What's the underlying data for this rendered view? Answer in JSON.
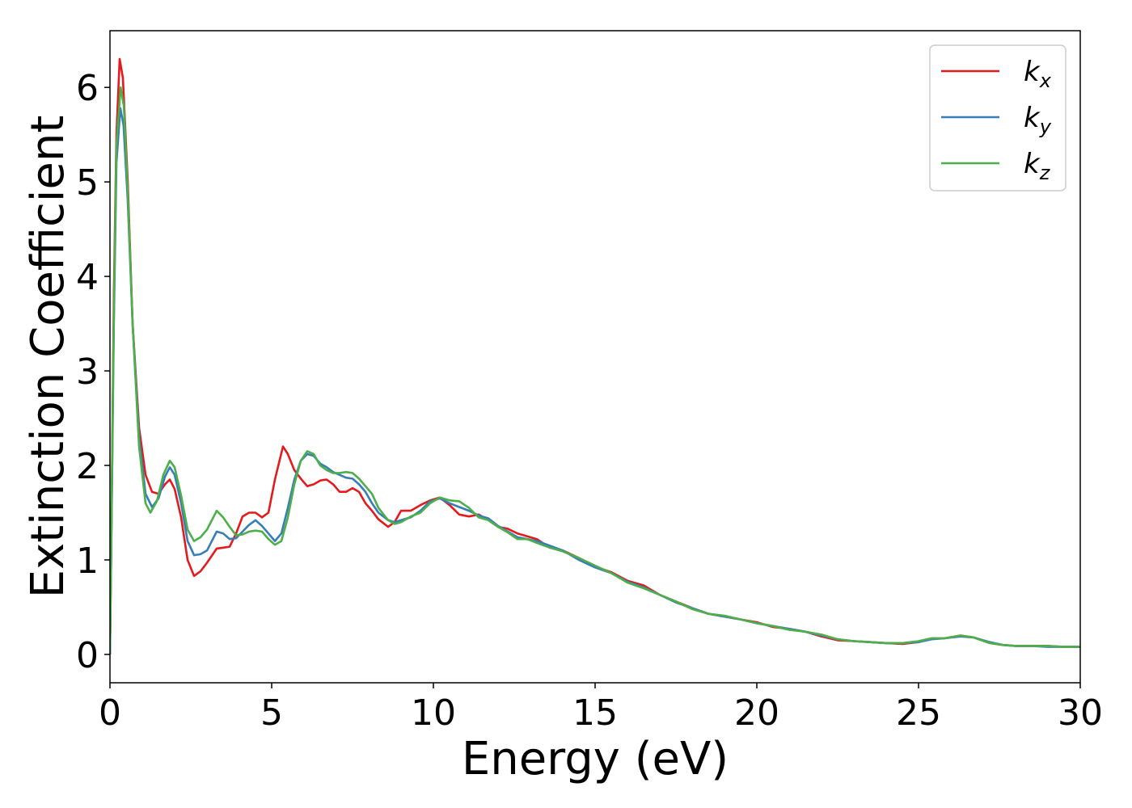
{
  "chart_data": {
    "type": "line",
    "title": "",
    "xlabel": "Energy (eV)",
    "ylabel": "Extinction Coefficient",
    "xlim": [
      0,
      30
    ],
    "ylim": [
      -0.3,
      6.6
    ],
    "xticks": [
      0,
      5,
      10,
      15,
      20,
      25,
      30
    ],
    "yticks": [
      0,
      1,
      2,
      3,
      4,
      5,
      6
    ],
    "grid": false,
    "legend_position": "top-right",
    "series": [
      {
        "name": "k_x",
        "label_main": "k",
        "label_sub": "x",
        "color": "#e41a1c",
        "points": [
          [
            0,
            0
          ],
          [
            0.05,
            1.5
          ],
          [
            0.12,
            3.8
          ],
          [
            0.2,
            5.5
          ],
          [
            0.3,
            6.3
          ],
          [
            0.4,
            6.1
          ],
          [
            0.55,
            5.0
          ],
          [
            0.7,
            3.5
          ],
          [
            0.9,
            2.4
          ],
          [
            1.1,
            1.9
          ],
          [
            1.3,
            1.72
          ],
          [
            1.5,
            1.7
          ],
          [
            1.7,
            1.8
          ],
          [
            1.85,
            1.85
          ],
          [
            2.0,
            1.75
          ],
          [
            2.2,
            1.45
          ],
          [
            2.4,
            1.0
          ],
          [
            2.6,
            0.83
          ],
          [
            2.8,
            0.88
          ],
          [
            3.0,
            0.97
          ],
          [
            3.3,
            1.12
          ],
          [
            3.5,
            1.13
          ],
          [
            3.7,
            1.14
          ],
          [
            3.9,
            1.28
          ],
          [
            4.1,
            1.46
          ],
          [
            4.3,
            1.5
          ],
          [
            4.5,
            1.5
          ],
          [
            4.7,
            1.45
          ],
          [
            4.9,
            1.5
          ],
          [
            5.1,
            1.85
          ],
          [
            5.35,
            2.2
          ],
          [
            5.5,
            2.12
          ],
          [
            5.7,
            1.95
          ],
          [
            5.9,
            1.86
          ],
          [
            6.1,
            1.78
          ],
          [
            6.3,
            1.8
          ],
          [
            6.5,
            1.84
          ],
          [
            6.7,
            1.85
          ],
          [
            6.9,
            1.8
          ],
          [
            7.1,
            1.72
          ],
          [
            7.3,
            1.72
          ],
          [
            7.5,
            1.76
          ],
          [
            7.7,
            1.72
          ],
          [
            7.9,
            1.6
          ],
          [
            8.1,
            1.52
          ],
          [
            8.3,
            1.43
          ],
          [
            8.6,
            1.35
          ],
          [
            8.8,
            1.4
          ],
          [
            9.0,
            1.52
          ],
          [
            9.3,
            1.52
          ],
          [
            9.6,
            1.58
          ],
          [
            9.9,
            1.63
          ],
          [
            10.2,
            1.66
          ],
          [
            10.5,
            1.58
          ],
          [
            10.8,
            1.48
          ],
          [
            11.1,
            1.46
          ],
          [
            11.4,
            1.48
          ],
          [
            11.7,
            1.42
          ],
          [
            12.0,
            1.35
          ],
          [
            12.3,
            1.33
          ],
          [
            12.6,
            1.28
          ],
          [
            12.9,
            1.25
          ],
          [
            13.2,
            1.22
          ],
          [
            13.6,
            1.13
          ],
          [
            14.0,
            1.1
          ],
          [
            14.5,
            1.02
          ],
          [
            15.0,
            0.93
          ],
          [
            15.5,
            0.87
          ],
          [
            16.0,
            0.78
          ],
          [
            16.5,
            0.73
          ],
          [
            17.0,
            0.63
          ],
          [
            17.5,
            0.56
          ],
          [
            18.0,
            0.49
          ],
          [
            18.5,
            0.43
          ],
          [
            19.0,
            0.4
          ],
          [
            19.5,
            0.37
          ],
          [
            20.0,
            0.34
          ],
          [
            20.5,
            0.29
          ],
          [
            21.0,
            0.27
          ],
          [
            21.5,
            0.24
          ],
          [
            22.0,
            0.19
          ],
          [
            22.5,
            0.15
          ],
          [
            23.0,
            0.14
          ],
          [
            23.5,
            0.13
          ],
          [
            24.0,
            0.12
          ],
          [
            24.5,
            0.11
          ],
          [
            25.0,
            0.13
          ],
          [
            25.4,
            0.17
          ],
          [
            25.8,
            0.17
          ],
          [
            26.3,
            0.2
          ],
          [
            26.7,
            0.18
          ],
          [
            27.2,
            0.12
          ],
          [
            27.6,
            0.1
          ],
          [
            28.0,
            0.09
          ],
          [
            28.5,
            0.09
          ],
          [
            29.0,
            0.09
          ],
          [
            29.5,
            0.08
          ],
          [
            30.0,
            0.08
          ]
        ]
      },
      {
        "name": "k_y",
        "label_main": "k",
        "label_sub": "y",
        "color": "#377eb8",
        "points": [
          [
            0,
            0
          ],
          [
            0.05,
            1.4
          ],
          [
            0.12,
            3.5
          ],
          [
            0.2,
            5.2
          ],
          [
            0.32,
            5.78
          ],
          [
            0.42,
            5.6
          ],
          [
            0.55,
            4.8
          ],
          [
            0.7,
            3.5
          ],
          [
            0.9,
            2.3
          ],
          [
            1.1,
            1.7
          ],
          [
            1.3,
            1.56
          ],
          [
            1.5,
            1.65
          ],
          [
            1.7,
            1.88
          ],
          [
            1.85,
            1.98
          ],
          [
            2.0,
            1.9
          ],
          [
            2.2,
            1.6
          ],
          [
            2.4,
            1.2
          ],
          [
            2.6,
            1.05
          ],
          [
            2.8,
            1.06
          ],
          [
            3.0,
            1.1
          ],
          [
            3.3,
            1.3
          ],
          [
            3.5,
            1.28
          ],
          [
            3.7,
            1.22
          ],
          [
            3.9,
            1.23
          ],
          [
            4.1,
            1.3
          ],
          [
            4.3,
            1.37
          ],
          [
            4.5,
            1.42
          ],
          [
            4.7,
            1.36
          ],
          [
            4.9,
            1.28
          ],
          [
            5.1,
            1.2
          ],
          [
            5.3,
            1.28
          ],
          [
            5.5,
            1.55
          ],
          [
            5.7,
            1.85
          ],
          [
            5.9,
            2.05
          ],
          [
            6.1,
            2.12
          ],
          [
            6.3,
            2.1
          ],
          [
            6.5,
            2.02
          ],
          [
            6.7,
            1.98
          ],
          [
            6.9,
            1.93
          ],
          [
            7.1,
            1.9
          ],
          [
            7.3,
            1.87
          ],
          [
            7.5,
            1.86
          ],
          [
            7.7,
            1.8
          ],
          [
            7.9,
            1.72
          ],
          [
            8.1,
            1.6
          ],
          [
            8.3,
            1.5
          ],
          [
            8.6,
            1.42
          ],
          [
            8.8,
            1.4
          ],
          [
            9.0,
            1.42
          ],
          [
            9.3,
            1.45
          ],
          [
            9.6,
            1.52
          ],
          [
            9.9,
            1.62
          ],
          [
            10.2,
            1.65
          ],
          [
            10.5,
            1.6
          ],
          [
            10.8,
            1.56
          ],
          [
            11.1,
            1.52
          ],
          [
            11.4,
            1.47
          ],
          [
            11.7,
            1.44
          ],
          [
            12.0,
            1.36
          ],
          [
            12.3,
            1.3
          ],
          [
            12.6,
            1.24
          ],
          [
            12.9,
            1.22
          ],
          [
            13.2,
            1.2
          ],
          [
            13.6,
            1.15
          ],
          [
            14.0,
            1.1
          ],
          [
            14.5,
            1.0
          ],
          [
            15.0,
            0.92
          ],
          [
            15.5,
            0.86
          ],
          [
            16.0,
            0.77
          ],
          [
            16.5,
            0.71
          ],
          [
            17.0,
            0.63
          ],
          [
            17.5,
            0.55
          ],
          [
            18.0,
            0.49
          ],
          [
            18.5,
            0.43
          ],
          [
            19.0,
            0.4
          ],
          [
            19.5,
            0.37
          ],
          [
            20.0,
            0.33
          ],
          [
            20.5,
            0.3
          ],
          [
            21.0,
            0.27
          ],
          [
            21.5,
            0.24
          ],
          [
            22.0,
            0.2
          ],
          [
            22.5,
            0.16
          ],
          [
            23.0,
            0.14
          ],
          [
            23.5,
            0.13
          ],
          [
            24.0,
            0.12
          ],
          [
            24.5,
            0.12
          ],
          [
            25.0,
            0.13
          ],
          [
            25.4,
            0.16
          ],
          [
            25.8,
            0.17
          ],
          [
            26.3,
            0.19
          ],
          [
            26.7,
            0.18
          ],
          [
            27.2,
            0.13
          ],
          [
            27.6,
            0.1
          ],
          [
            28.0,
            0.09
          ],
          [
            28.5,
            0.09
          ],
          [
            29.0,
            0.08
          ],
          [
            29.5,
            0.08
          ],
          [
            30.0,
            0.08
          ]
        ]
      },
      {
        "name": "k_z",
        "label_main": "k",
        "label_sub": "z",
        "color": "#4daf4a",
        "points": [
          [
            0,
            0
          ],
          [
            0.05,
            1.45
          ],
          [
            0.12,
            3.6
          ],
          [
            0.2,
            5.4
          ],
          [
            0.33,
            6.0
          ],
          [
            0.43,
            5.8
          ],
          [
            0.55,
            4.9
          ],
          [
            0.7,
            3.5
          ],
          [
            0.9,
            2.2
          ],
          [
            1.1,
            1.6
          ],
          [
            1.25,
            1.5
          ],
          [
            1.45,
            1.62
          ],
          [
            1.65,
            1.9
          ],
          [
            1.85,
            2.05
          ],
          [
            2.0,
            1.98
          ],
          [
            2.2,
            1.68
          ],
          [
            2.4,
            1.32
          ],
          [
            2.6,
            1.2
          ],
          [
            2.8,
            1.24
          ],
          [
            3.0,
            1.32
          ],
          [
            3.3,
            1.52
          ],
          [
            3.5,
            1.45
          ],
          [
            3.7,
            1.35
          ],
          [
            3.9,
            1.26
          ],
          [
            4.1,
            1.27
          ],
          [
            4.3,
            1.3
          ],
          [
            4.5,
            1.31
          ],
          [
            4.7,
            1.3
          ],
          [
            4.9,
            1.22
          ],
          [
            5.1,
            1.16
          ],
          [
            5.3,
            1.2
          ],
          [
            5.5,
            1.45
          ],
          [
            5.7,
            1.8
          ],
          [
            5.9,
            2.05
          ],
          [
            6.1,
            2.15
          ],
          [
            6.3,
            2.12
          ],
          [
            6.5,
            2.0
          ],
          [
            6.7,
            1.95
          ],
          [
            6.9,
            1.92
          ],
          [
            7.1,
            1.92
          ],
          [
            7.3,
            1.93
          ],
          [
            7.5,
            1.92
          ],
          [
            7.7,
            1.86
          ],
          [
            7.9,
            1.78
          ],
          [
            8.1,
            1.7
          ],
          [
            8.3,
            1.55
          ],
          [
            8.6,
            1.42
          ],
          [
            8.8,
            1.38
          ],
          [
            9.0,
            1.4
          ],
          [
            9.3,
            1.46
          ],
          [
            9.6,
            1.5
          ],
          [
            9.9,
            1.6
          ],
          [
            10.2,
            1.66
          ],
          [
            10.5,
            1.63
          ],
          [
            10.8,
            1.62
          ],
          [
            11.1,
            1.55
          ],
          [
            11.4,
            1.45
          ],
          [
            11.7,
            1.42
          ],
          [
            12.0,
            1.35
          ],
          [
            12.3,
            1.29
          ],
          [
            12.6,
            1.22
          ],
          [
            12.9,
            1.22
          ],
          [
            13.2,
            1.18
          ],
          [
            13.6,
            1.13
          ],
          [
            14.0,
            1.09
          ],
          [
            14.5,
            1.02
          ],
          [
            15.0,
            0.94
          ],
          [
            15.5,
            0.86
          ],
          [
            16.0,
            0.76
          ],
          [
            16.5,
            0.7
          ],
          [
            17.0,
            0.63
          ],
          [
            17.5,
            0.56
          ],
          [
            18.0,
            0.48
          ],
          [
            18.5,
            0.43
          ],
          [
            19.0,
            0.41
          ],
          [
            19.5,
            0.37
          ],
          [
            20.0,
            0.33
          ],
          [
            20.5,
            0.3
          ],
          [
            21.0,
            0.26
          ],
          [
            21.5,
            0.24
          ],
          [
            22.0,
            0.21
          ],
          [
            22.5,
            0.16
          ],
          [
            23.0,
            0.14
          ],
          [
            23.5,
            0.13
          ],
          [
            24.0,
            0.12
          ],
          [
            24.5,
            0.12
          ],
          [
            25.0,
            0.14
          ],
          [
            25.4,
            0.17
          ],
          [
            25.8,
            0.17
          ],
          [
            26.3,
            0.2
          ],
          [
            26.7,
            0.18
          ],
          [
            27.2,
            0.12
          ],
          [
            27.6,
            0.1
          ],
          [
            28.0,
            0.09
          ],
          [
            28.5,
            0.09
          ],
          [
            29.0,
            0.09
          ],
          [
            29.5,
            0.08
          ],
          [
            30.0,
            0.08
          ]
        ]
      }
    ]
  }
}
